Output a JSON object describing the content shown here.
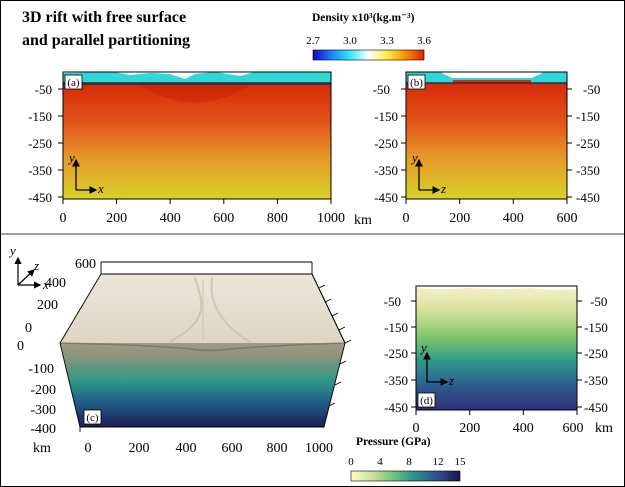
{
  "figure": {
    "title_line1": "3D rift with free surface",
    "title_line2": "and parallel partitioning",
    "density_colorbar": {
      "title": "Density x10³(kg.m⁻³)",
      "ticks": [
        "2.7",
        "3.0",
        "3.3",
        "3.6"
      ],
      "range": [
        2.7,
        3.6
      ],
      "colormap": [
        "#1e00c8",
        "#1a8cff",
        "#33e6ff",
        "#ffffff",
        "#fff04d",
        "#ff9900",
        "#dd2200"
      ]
    },
    "pressure_colorbar": {
      "title": "Pressure (GPa)",
      "ticks": [
        "0",
        "4",
        "8",
        "12",
        "15"
      ],
      "range": [
        0,
        15
      ],
      "colormap": [
        "#fdf8c8",
        "#c8e29a",
        "#6cc07a",
        "#2f9a8a",
        "#2c6f8f",
        "#2e3e86",
        "#1c1247"
      ]
    }
  },
  "panels": {
    "a": {
      "label": "(a)",
      "y_axis_label": "y",
      "x_axis_label": "x",
      "y_ticks": [
        "-50",
        "-150",
        "-250",
        "-350",
        "-450"
      ],
      "x_ticks": [
        "0",
        "200",
        "400",
        "600",
        "800",
        "1000"
      ],
      "x_unit": "km",
      "colors": {
        "surface": "#2fd7d7",
        "top": "#d42a08",
        "bottom": "#dcd22a"
      }
    },
    "b": {
      "label": "(b)",
      "y_axis_label": "y",
      "x_axis_label": "z",
      "y_ticks_left": [
        "-50",
        "-150",
        "-250",
        "-350",
        "-450"
      ],
      "y_ticks_right": [
        "-50",
        "-150",
        "-250",
        "-350",
        "-450"
      ],
      "x_ticks": [
        "0",
        "200",
        "400",
        "600"
      ]
    },
    "c": {
      "label": "(c)",
      "axes_labels": [
        "y",
        "z",
        "x"
      ],
      "z_ticks": [
        "600",
        "400",
        "200",
        "0"
      ],
      "y_ticks": [
        "0",
        "-100",
        "-200",
        "-300",
        "-400"
      ],
      "x_ticks": [
        "0",
        "200",
        "400",
        "600",
        "800",
        "1000"
      ],
      "unit": "km",
      "colors": {
        "top": "#e8e2d4",
        "upper": "#a09a86",
        "mid": "#2e9a86",
        "bottom": "#1a1f55"
      }
    },
    "d": {
      "label": "(d)",
      "y_axis_label": "y",
      "x_axis_label": "z",
      "y_ticks_left": [
        "-50",
        "-150",
        "-250",
        "-350",
        "-450"
      ],
      "y_ticks_right": [
        "-50",
        "-150",
        "-250",
        "-350",
        "-450"
      ],
      "x_ticks": [
        "0",
        "200",
        "400",
        "600"
      ],
      "x_unit": "km"
    }
  }
}
